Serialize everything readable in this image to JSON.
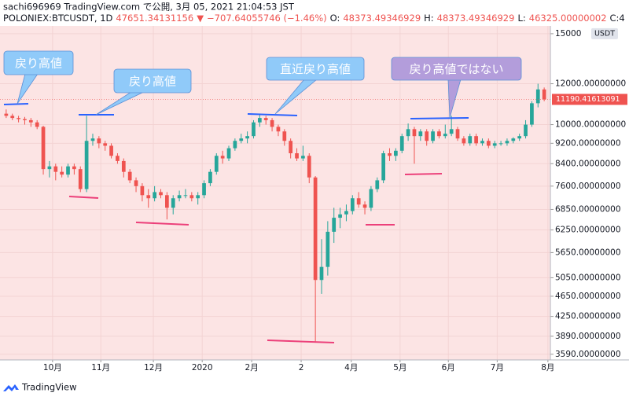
{
  "header": {
    "line1": "sachi696969 TradingView.com で公開, 3月 05, 2021 21:04:53 JST",
    "line2": [
      {
        "text": "POLONIEX:BTCUSDT, 1D",
        "color": "#131722"
      },
      {
        "text": "47651.34131156",
        "color": "#ef5350"
      },
      {
        "text": "▼",
        "color": "#ef5350"
      },
      {
        "text": "−707.64055746 (−1.46%)",
        "color": "#ef5350"
      },
      {
        "text": "O:",
        "color": "#131722"
      },
      {
        "text": "48373.49346929",
        "color": "#ef5350"
      },
      {
        "text": "H:",
        "color": "#131722"
      },
      {
        "text": "48373.49346929",
        "color": "#ef5350"
      },
      {
        "text": "L:",
        "color": "#131722"
      },
      {
        "text": "46325.00000002",
        "color": "#ef5350"
      },
      {
        "text": "C:4",
        "color": "#131722"
      }
    ]
  },
  "footer": {
    "brand": "TradingView"
  },
  "chart_data": {
    "type": "candlestick",
    "background": "#fce4e4",
    "up_color": "#26a69a",
    "down_color": "#ef5350",
    "log_scale": true,
    "grid": true,
    "unit": "USDT",
    "annotations": [
      {
        "text": "戻り高値",
        "color": "#90caf9"
      },
      {
        "text": "戻り高値",
        "color": "#90caf9"
      },
      {
        "text": "直近戻り高値",
        "color": "#90caf9"
      },
      {
        "text": "戻り高値ではない",
        "color": "#b39ddb"
      }
    ],
    "xlim": [
      -1,
      88
    ],
    "xticks": [
      {
        "value": 7.5,
        "label": "10月"
      },
      {
        "value": 15.3,
        "label": "11月"
      },
      {
        "value": 23.8,
        "label": "12月"
      },
      {
        "value": 31.7,
        "label": "2020"
      },
      {
        "value": 39.7,
        "label": "2月"
      },
      {
        "value": 47.7,
        "label": "2"
      },
      {
        "value": 55.8,
        "label": "4月"
      },
      {
        "value": 63.7,
        "label": "5月"
      },
      {
        "value": 71.5,
        "label": "6月"
      },
      {
        "value": 79.4,
        "label": "7月"
      },
      {
        "value": 87.6,
        "label": "8月"
      }
    ],
    "ylim": [
      3500,
      15530
    ],
    "yticks": [
      15000,
      {
        "value": 12000,
        "label": "12000.00000000"
      },
      {
        "value": 10000,
        "label": "10000.00000000"
      },
      {
        "value": 9200,
        "label": "9200.00000000"
      },
      {
        "value": 8400,
        "label": "8400.00000000"
      },
      {
        "value": 7600,
        "label": "7600.00000000"
      },
      {
        "value": 6850,
        "label": "6850.00000000"
      },
      {
        "value": 6250,
        "label": "6250.00000000"
      },
      {
        "value": 5650,
        "label": "5650.00000000"
      },
      {
        "value": 5050,
        "label": "5050.00000000"
      },
      {
        "value": 4650,
        "label": "4650.00000000"
      },
      {
        "value": 4250,
        "label": "4250.00000000"
      },
      {
        "value": 3890,
        "label": "3890.00000000"
      },
      {
        "value": 3590,
        "label": "3590.00000000"
      }
    ],
    "open": [
      10500,
      10400,
      10300,
      10250,
      10200,
      10100,
      9900,
      8200,
      8300,
      8100,
      8000,
      8300,
      8200,
      7500,
      9300,
      9400,
      9200,
      9100,
      8700,
      8500,
      8100,
      7800,
      7600,
      7300,
      7200,
      7400,
      7300,
      6900,
      7200,
      7300,
      7300,
      7200,
      7300,
      7700,
      8100,
      8700,
      8600,
      9000,
      9300,
      9400,
      9500,
      10100,
      10300,
      10200,
      9900,
      9700,
      9300,
      8800,
      8600,
      8700,
      7900,
      5000,
      5300,
      6200,
      6600,
      6700,
      6800,
      7200,
      7000,
      6900,
      7500,
      7800,
      8800,
      8700,
      8900,
      9500,
      9800,
      9500,
      9700,
      9300,
      9700,
      9500,
      9600,
      9800,
      9400,
      9200,
      9500,
      9200,
      9300,
      9100,
      9200,
      9200,
      9300,
      9400,
      9500,
      10000,
      11000,
      11700
    ],
    "high": [
      10700,
      10500,
      10400,
      10350,
      10300,
      10200,
      9950,
      8500,
      8400,
      8300,
      8400,
      8400,
      8300,
      10400,
      9600,
      9500,
      9300,
      9200,
      8800,
      8600,
      8200,
      7900,
      7700,
      7500,
      7600,
      7500,
      7400,
      7300,
      7450,
      7500,
      7400,
      7400,
      7800,
      8200,
      8800,
      8900,
      9100,
      9400,
      9600,
      9700,
      10200,
      10500,
      10400,
      10300,
      10000,
      9800,
      9400,
      9000,
      9100,
      8800,
      7950,
      6000,
      6500,
      6900,
      6900,
      7000,
      7300,
      7400,
      7100,
      7600,
      7900,
      8900,
      9000,
      9000,
      9600,
      10050,
      9900,
      9800,
      9800,
      9800,
      9800,
      10000,
      10400,
      9900,
      9500,
      9600,
      9600,
      9400,
      9400,
      9300,
      9300,
      9400,
      9450,
      9600,
      10200,
      11100,
      12000,
      11800
    ],
    "low": [
      10300,
      10200,
      10100,
      10000,
      9900,
      9800,
      8000,
      7900,
      7800,
      7900,
      7900,
      8000,
      7400,
      7400,
      9100,
      9000,
      8900,
      8600,
      8400,
      7900,
      7700,
      7400,
      7100,
      6900,
      7100,
      7200,
      6550,
      6700,
      7100,
      7200,
      7100,
      7000,
      7200,
      7600,
      8000,
      8400,
      8500,
      8900,
      9200,
      9200,
      9400,
      9900,
      10000,
      9700,
      9500,
      9100,
      8600,
      8500,
      8500,
      7700,
      3800,
      4700,
      5100,
      5900,
      6300,
      6500,
      6700,
      6900,
      6700,
      6800,
      7400,
      7700,
      8500,
      8500,
      8800,
      9300,
      8400,
      9300,
      9100,
      9200,
      9400,
      9400,
      9500,
      9300,
      9100,
      9100,
      9100,
      9100,
      9000,
      9000,
      9100,
      9100,
      9200,
      9300,
      9400,
      9900,
      10800,
      11100
    ],
    "close": [
      10400,
      10300,
      10250,
      10200,
      10100,
      9900,
      8200,
      8300,
      8100,
      8000,
      8300,
      8200,
      7500,
      9300,
      9400,
      9200,
      9100,
      8700,
      8500,
      8100,
      7800,
      7600,
      7300,
      7200,
      7400,
      7300,
      6900,
      7200,
      7300,
      7300,
      7200,
      7300,
      7700,
      8100,
      8700,
      8600,
      9000,
      9300,
      9400,
      9500,
      10100,
      10300,
      10200,
      9900,
      9700,
      9300,
      8800,
      8600,
      8700,
      7900,
      5000,
      5300,
      6200,
      6600,
      6700,
      6800,
      7200,
      7000,
      6900,
      7500,
      7800,
      8800,
      8700,
      8900,
      9500,
      9800,
      9500,
      9700,
      9300,
      9700,
      9500,
      9600,
      9800,
      9400,
      9200,
      9500,
      9200,
      9300,
      9100,
      9200,
      9200,
      9300,
      9400,
      9500,
      10000,
      11000,
      11700,
      11190.41613091
    ]
  }
}
